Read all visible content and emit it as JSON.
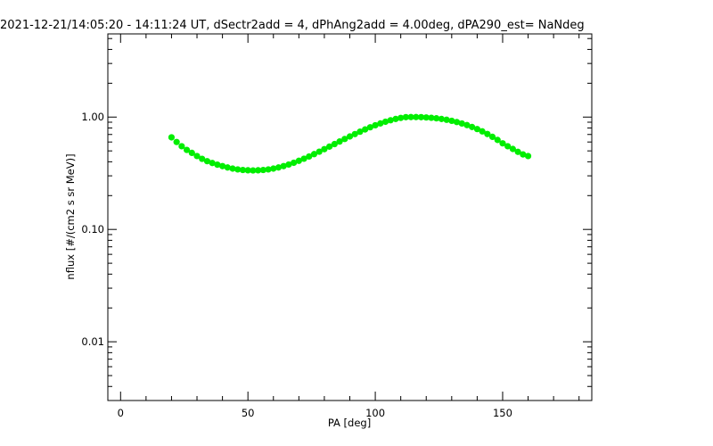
{
  "chart_data": {
    "type": "scatter",
    "title": "2021-12-21/14:05:20 - 14:11:24 UT, dSectr2add = 4, dPhAng2add = 4.00deg, dPA290_est=    NaNdeg",
    "xlabel": "PA [deg]",
    "ylabel": "nflux [#/(cm2 s sr MeV)]",
    "xlim": [
      -5,
      185
    ],
    "ylim": [
      0.003,
      5.5
    ],
    "y_scale": "log",
    "grid": false,
    "legend": "none",
    "x_ticks": [
      {
        "value": 0,
        "label": "0"
      },
      {
        "value": 50,
        "label": "50"
      },
      {
        "value": 100,
        "label": "100"
      },
      {
        "value": 150,
        "label": "150"
      }
    ],
    "y_ticks": [
      {
        "value": 0.01,
        "label": "0.01"
      },
      {
        "value": 0.1,
        "label": "0.10"
      },
      {
        "value": 1.0,
        "label": "1.00"
      }
    ],
    "marker_color": "#00ee00",
    "series": [
      {
        "x": [
          20,
          22,
          24,
          26,
          28,
          30,
          32,
          34,
          36,
          38,
          40,
          42,
          44,
          46,
          48,
          50,
          52,
          54,
          56,
          58,
          60,
          62,
          64,
          66,
          68,
          70,
          72,
          74,
          76,
          78,
          80,
          82,
          84,
          86,
          88,
          90,
          92,
          94,
          96,
          98,
          100,
          102,
          104,
          106,
          108,
          110,
          112,
          114,
          116,
          118,
          120,
          122,
          124,
          126,
          128,
          130,
          132,
          134,
          136,
          138,
          140,
          142,
          144,
          146,
          148,
          150,
          152,
          154,
          156,
          158,
          160
        ],
        "y": [
          0.66,
          0.6,
          0.55,
          0.51,
          0.48,
          0.45,
          0.425,
          0.405,
          0.39,
          0.377,
          0.366,
          0.356,
          0.348,
          0.342,
          0.338,
          0.336,
          0.335,
          0.336,
          0.338,
          0.342,
          0.348,
          0.356,
          0.366,
          0.378,
          0.392,
          0.408,
          0.426,
          0.446,
          0.468,
          0.492,
          0.518,
          0.546,
          0.575,
          0.606,
          0.638,
          0.672,
          0.706,
          0.741,
          0.776,
          0.811,
          0.845,
          0.878,
          0.909,
          0.937,
          0.962,
          0.983,
          0.998,
          1.0,
          1.0,
          0.998,
          0.992,
          0.985,
          0.975,
          0.962,
          0.946,
          0.926,
          0.903,
          0.877,
          0.848,
          0.816,
          0.782,
          0.746,
          0.707,
          0.667,
          0.626,
          0.584,
          0.55,
          0.52,
          0.49,
          0.465,
          0.45
        ]
      }
    ]
  }
}
